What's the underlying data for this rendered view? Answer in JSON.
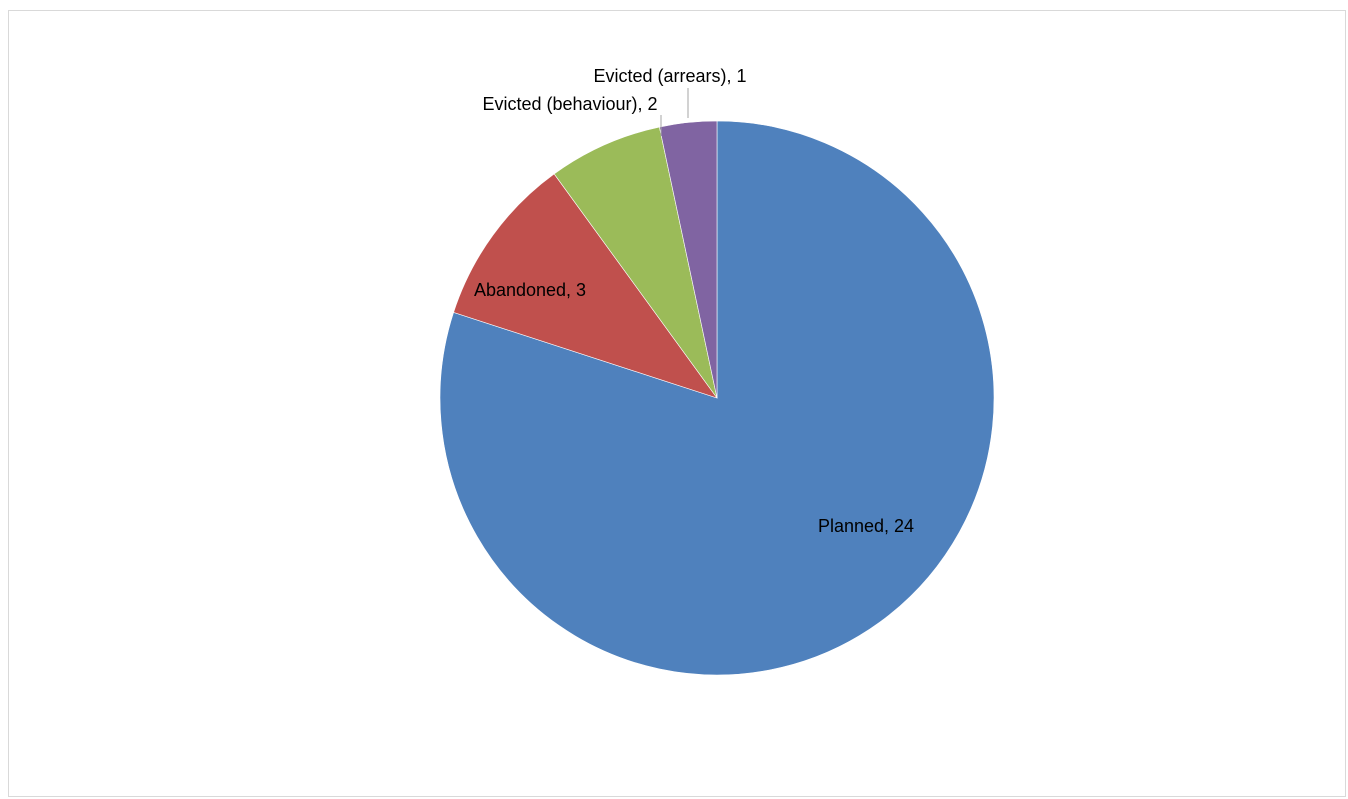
{
  "chart_data": {
    "type": "pie",
    "title": "",
    "start_angle_deg": 0,
    "direction": "clockwise",
    "slices": [
      {
        "label": "Planned",
        "value": 24,
        "color": "#4F81BD",
        "data_label": "Planned, 24"
      },
      {
        "label": "Abandoned",
        "value": 3,
        "color": "#C0504D",
        "data_label": "Abandoned, 3"
      },
      {
        "label": "Evicted (behaviour)",
        "value": 2,
        "color": "#9BBB59",
        "data_label": "Evicted (behaviour), 2"
      },
      {
        "label": "Evicted (arrears)",
        "value": 1,
        "color": "#8064A2",
        "data_label": "Evicted (arrears), 1"
      }
    ],
    "legend": "none"
  }
}
